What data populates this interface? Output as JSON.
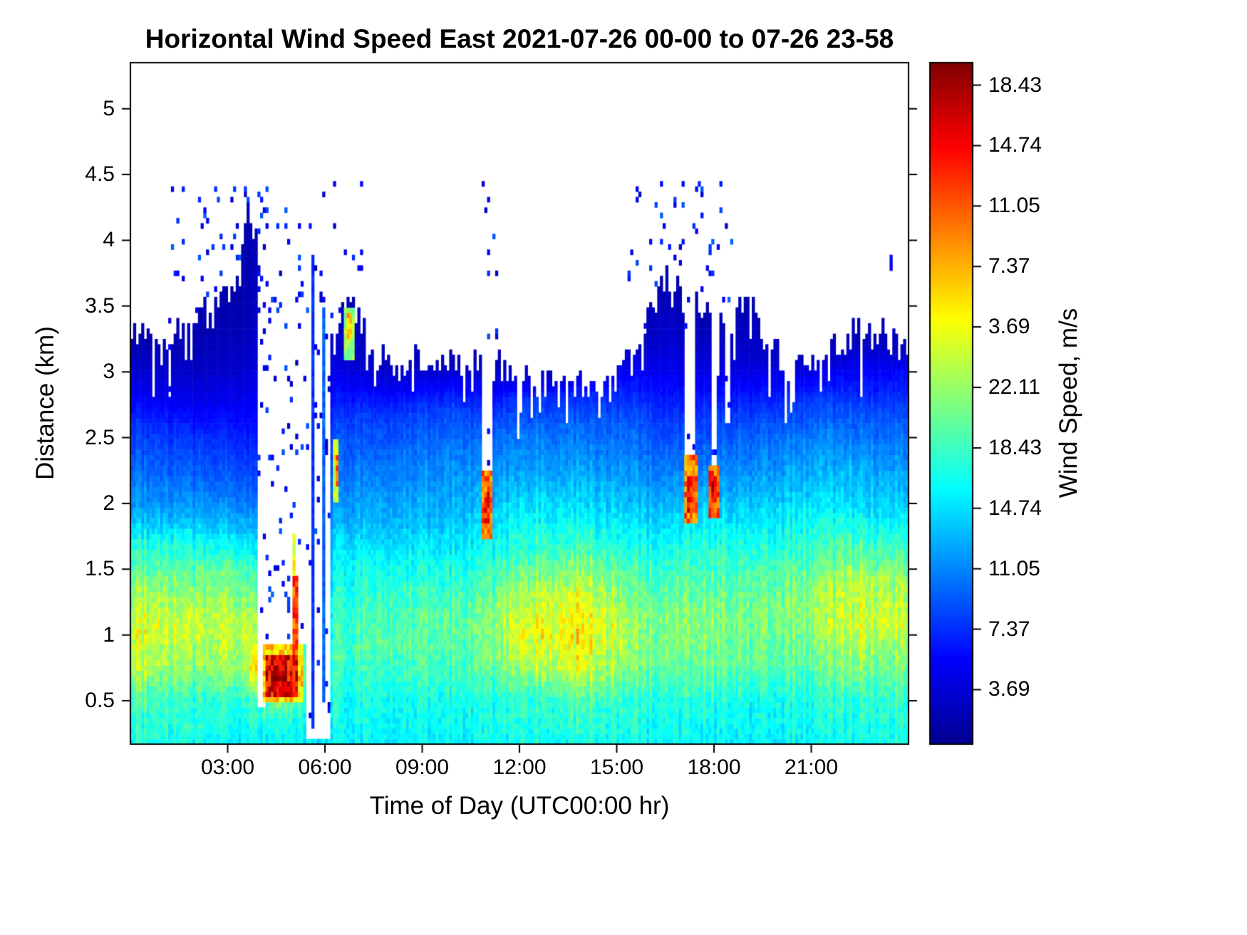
{
  "chart_data": {
    "type": "heatmap",
    "title": "Horizontal Wind Speed East 2021-07-26 00-00 to 07-26 23-58",
    "xlabel": "Time of Day (UTC00:00 hr)",
    "ylabel": "Distance (km)",
    "colorbar_label": "Wind Speed, m/s",
    "x_range": [
      0,
      24
    ],
    "y_range": [
      0.17,
      5.35
    ],
    "value_range": [
      0,
      40.54
    ],
    "grid_on": false,
    "x_ticks": [
      {
        "t": 3,
        "label": "03:00"
      },
      {
        "t": 6,
        "label": "06:00"
      },
      {
        "t": 9,
        "label": "09:00"
      },
      {
        "t": 12,
        "label": "12:00"
      },
      {
        "t": 15,
        "label": "15:00"
      },
      {
        "t": 18,
        "label": "18:00"
      },
      {
        "t": 21,
        "label": "21:00"
      }
    ],
    "y_ticks": [
      {
        "v": 0.5,
        "label": "0.5"
      },
      {
        "v": 1,
        "label": "1"
      },
      {
        "v": 1.5,
        "label": "1.5"
      },
      {
        "v": 2,
        "label": "2"
      },
      {
        "v": 2.5,
        "label": "2.5"
      },
      {
        "v": 3,
        "label": "3"
      },
      {
        "v": 3.5,
        "label": "3.5"
      },
      {
        "v": 4,
        "label": "4"
      },
      {
        "v": 4.5,
        "label": "4.5"
      },
      {
        "v": 5,
        "label": "5"
      }
    ],
    "colorbar_tick_labels_top_to_bottom": [
      "18.43",
      "14.74",
      "11.05",
      "7.37",
      "3.69",
      "22.11",
      "18.43",
      "14.74",
      "11.05",
      "7.37",
      "3.69"
    ],
    "colormap": "jet",
    "colormap_stops": [
      [
        0,
        0,
        0,
        143
      ],
      [
        0.125,
        0,
        0,
        255
      ],
      [
        0.375,
        0,
        255,
        255
      ],
      [
        0.625,
        255,
        255,
        0
      ],
      [
        0.875,
        255,
        0,
        0
      ],
      [
        1,
        128,
        0,
        0
      ]
    ],
    "grid": {
      "cols": 288,
      "dh": 0.04
    },
    "profiles": [
      {
        "t": 0,
        "levels": [
          [
            0.17,
            16
          ],
          [
            0.5,
            18
          ],
          [
            0.7,
            22
          ],
          [
            1.0,
            24
          ],
          [
            1.3,
            22
          ],
          [
            1.6,
            18
          ],
          [
            1.8,
            14
          ],
          [
            2.0,
            11
          ],
          [
            2.3,
            9
          ],
          [
            2.6,
            7
          ],
          [
            2.8,
            5
          ],
          [
            3.0,
            3
          ],
          [
            3.2,
            1.5
          ],
          [
            5.4,
            1.2
          ]
        ]
      },
      {
        "t": 2,
        "levels": [
          [
            0.17,
            16
          ],
          [
            0.5,
            17
          ],
          [
            0.8,
            21
          ],
          [
            1.1,
            23
          ],
          [
            1.4,
            20
          ],
          [
            1.7,
            16
          ],
          [
            1.9,
            12
          ],
          [
            2.2,
            9
          ],
          [
            2.5,
            7
          ],
          [
            2.8,
            4
          ],
          [
            3.0,
            2.5
          ],
          [
            3.3,
            1.5
          ],
          [
            5.4,
            1.2
          ]
        ]
      },
      {
        "t": 3.5,
        "levels": [
          [
            0.17,
            15
          ],
          [
            0.5,
            17
          ],
          [
            0.8,
            22
          ],
          [
            1.1,
            23
          ],
          [
            1.5,
            19
          ],
          [
            1.8,
            13
          ],
          [
            2.1,
            9
          ],
          [
            2.4,
            7
          ],
          [
            2.7,
            5
          ],
          [
            3.0,
            3
          ],
          [
            3.4,
            1.5
          ],
          [
            5.4,
            1.2
          ]
        ]
      },
      {
        "t": 4.6,
        "levels": [
          [
            0.17,
            15
          ],
          [
            0.35,
            16
          ],
          [
            0.5,
            20
          ],
          [
            0.65,
            30
          ],
          [
            0.75,
            34
          ],
          [
            0.9,
            26
          ],
          [
            1.1,
            20
          ],
          [
            1.6,
            10
          ],
          [
            2.5,
            5
          ],
          [
            5.4,
            1.2
          ]
        ]
      },
      {
        "t": 5.6,
        "levels": [
          [
            0.17,
            14
          ],
          [
            0.4,
            15
          ],
          [
            0.6,
            16
          ],
          [
            0.9,
            14
          ],
          [
            1.2,
            12
          ],
          [
            2.0,
            8
          ],
          [
            3.0,
            3
          ],
          [
            5.4,
            1.2
          ]
        ]
      },
      {
        "t": 6.5,
        "levels": [
          [
            0.17,
            15
          ],
          [
            0.5,
            16
          ],
          [
            0.9,
            18
          ],
          [
            1.3,
            17
          ],
          [
            1.6,
            15
          ],
          [
            1.9,
            12
          ],
          [
            2.2,
            10
          ],
          [
            2.6,
            8
          ],
          [
            2.9,
            5
          ],
          [
            3.1,
            3
          ],
          [
            3.5,
            1.5
          ],
          [
            5.4,
            1.2
          ]
        ]
      },
      {
        "t": 8,
        "levels": [
          [
            0.17,
            15
          ],
          [
            0.5,
            16
          ],
          [
            0.9,
            19
          ],
          [
            1.2,
            18
          ],
          [
            1.5,
            16
          ],
          [
            1.8,
            13
          ],
          [
            2.1,
            11
          ],
          [
            2.4,
            9
          ],
          [
            2.7,
            7
          ],
          [
            2.9,
            4
          ],
          [
            3.05,
            2
          ],
          [
            5.4,
            1.2
          ]
        ]
      },
      {
        "t": 10,
        "levels": [
          [
            0.17,
            15
          ],
          [
            0.5,
            16
          ],
          [
            0.8,
            18
          ],
          [
            1.1,
            19
          ],
          [
            1.4,
            17
          ],
          [
            1.7,
            14
          ],
          [
            2.0,
            12
          ],
          [
            2.4,
            10
          ],
          [
            2.7,
            8
          ],
          [
            2.9,
            5
          ],
          [
            3.05,
            2
          ],
          [
            5.4,
            1.2
          ]
        ]
      },
      {
        "t": 11,
        "levels": [
          [
            0.17,
            15
          ],
          [
            0.5,
            16
          ],
          [
            0.8,
            19
          ],
          [
            1.1,
            20
          ],
          [
            1.4,
            18
          ],
          [
            1.7,
            15
          ],
          [
            2.2,
            11
          ],
          [
            2.6,
            8
          ],
          [
            2.9,
            4
          ],
          [
            3.05,
            2
          ],
          [
            5.4,
            1.2
          ]
        ]
      },
      {
        "t": 12.5,
        "levels": [
          [
            0.17,
            16
          ],
          [
            0.5,
            17
          ],
          [
            0.7,
            21
          ],
          [
            1.0,
            25
          ],
          [
            1.3,
            23
          ],
          [
            1.6,
            18
          ],
          [
            1.9,
            15
          ],
          [
            2.2,
            12
          ],
          [
            2.5,
            10
          ],
          [
            2.8,
            7
          ],
          [
            2.95,
            3
          ],
          [
            3.1,
            1.5
          ],
          [
            5.4,
            1.2
          ]
        ]
      },
      {
        "t": 14,
        "levels": [
          [
            0.17,
            16
          ],
          [
            0.5,
            18
          ],
          [
            0.7,
            23
          ],
          [
            1.0,
            26
          ],
          [
            1.3,
            24
          ],
          [
            1.6,
            19
          ],
          [
            1.9,
            15
          ],
          [
            2.2,
            12
          ],
          [
            2.6,
            9
          ],
          [
            2.85,
            6
          ],
          [
            2.95,
            3
          ],
          [
            5.4,
            1.2
          ]
        ]
      },
      {
        "t": 15.5,
        "levels": [
          [
            0.17,
            16
          ],
          [
            0.5,
            17
          ],
          [
            0.8,
            21
          ],
          [
            1.1,
            22
          ],
          [
            1.4,
            19
          ],
          [
            1.7,
            16
          ],
          [
            2.0,
            13
          ],
          [
            2.4,
            10
          ],
          [
            2.7,
            8
          ],
          [
            3.0,
            5
          ],
          [
            3.2,
            2
          ],
          [
            5.4,
            1.2
          ]
        ]
      },
      {
        "t": 16.5,
        "levels": [
          [
            0.17,
            15
          ],
          [
            0.5,
            16
          ],
          [
            0.8,
            19
          ],
          [
            1.1,
            20
          ],
          [
            1.5,
            17
          ],
          [
            1.8,
            14
          ],
          [
            2.1,
            11
          ],
          [
            2.5,
            8
          ],
          [
            2.9,
            5
          ],
          [
            3.2,
            3
          ],
          [
            3.7,
            1.5
          ],
          [
            5.4,
            1.2
          ]
        ]
      },
      {
        "t": 17.6,
        "levels": [
          [
            0.17,
            15
          ],
          [
            0.5,
            17
          ],
          [
            0.8,
            20
          ],
          [
            1.1,
            21
          ],
          [
            1.4,
            19
          ],
          [
            1.7,
            17
          ],
          [
            2.0,
            13
          ],
          [
            2.3,
            10
          ],
          [
            2.7,
            7
          ],
          [
            3.0,
            4
          ],
          [
            3.4,
            1.5
          ],
          [
            5.4,
            1.2
          ]
        ]
      },
      {
        "t": 19,
        "levels": [
          [
            0.17,
            15
          ],
          [
            0.5,
            16
          ],
          [
            0.8,
            19
          ],
          [
            1.2,
            20
          ],
          [
            1.5,
            18
          ],
          [
            1.8,
            15
          ],
          [
            2.1,
            12
          ],
          [
            2.5,
            9
          ],
          [
            2.8,
            6
          ],
          [
            3.1,
            3
          ],
          [
            3.5,
            1.5
          ],
          [
            5.4,
            1.2
          ]
        ]
      },
      {
        "t": 21,
        "levels": [
          [
            0.17,
            15
          ],
          [
            0.5,
            16
          ],
          [
            0.8,
            19
          ],
          [
            1.2,
            21
          ],
          [
            1.5,
            19
          ],
          [
            1.8,
            16
          ],
          [
            2.1,
            13
          ],
          [
            2.5,
            10
          ],
          [
            2.8,
            7
          ],
          [
            3.0,
            4
          ],
          [
            3.1,
            2
          ],
          [
            5.4,
            1.2
          ]
        ]
      },
      {
        "t": 22.5,
        "levels": [
          [
            0.17,
            16
          ],
          [
            0.5,
            17
          ],
          [
            0.8,
            21
          ],
          [
            1.1,
            24
          ],
          [
            1.4,
            23
          ],
          [
            1.7,
            18
          ],
          [
            2.0,
            14
          ],
          [
            2.4,
            11
          ],
          [
            2.7,
            8
          ],
          [
            3.0,
            5
          ],
          [
            3.25,
            2
          ],
          [
            5.4,
            1.2
          ]
        ]
      },
      {
        "t": 24,
        "levels": [
          [
            0.17,
            16
          ],
          [
            0.5,
            17
          ],
          [
            0.8,
            20
          ],
          [
            1.1,
            23
          ],
          [
            1.4,
            21
          ],
          [
            1.7,
            17
          ],
          [
            2.0,
            13
          ],
          [
            2.4,
            10
          ],
          [
            2.7,
            8
          ],
          [
            3.0,
            5
          ],
          [
            3.2,
            2
          ],
          [
            5.4,
            1.2
          ]
        ]
      }
    ],
    "tops": [
      [
        0,
        3.35
      ],
      [
        0.5,
        3.25
      ],
      [
        1,
        3.2
      ],
      [
        1.5,
        3.3
      ],
      [
        2,
        3.4
      ],
      [
        2.5,
        3.5
      ],
      [
        3,
        3.6
      ],
      [
        3.4,
        3.8
      ],
      [
        3.7,
        4.4
      ],
      [
        3.9,
        4.0
      ],
      [
        4.5,
        3.9
      ],
      [
        5.5,
        3.9
      ],
      [
        6.2,
        3.3
      ],
      [
        6.6,
        3.55
      ],
      [
        7.0,
        3.45
      ],
      [
        7.5,
        3.15
      ],
      [
        8,
        3.05
      ],
      [
        9,
        3.1
      ],
      [
        10,
        3.05
      ],
      [
        10.8,
        3.05
      ],
      [
        11.3,
        3.05
      ],
      [
        12,
        2.95
      ],
      [
        13,
        2.9
      ],
      [
        14,
        2.9
      ],
      [
        15,
        2.95
      ],
      [
        15.5,
        3.1
      ],
      [
        16,
        3.45
      ],
      [
        16.5,
        3.7
      ],
      [
        17,
        3.65
      ],
      [
        17.5,
        3.5
      ],
      [
        18,
        3.45
      ],
      [
        18.5,
        3.4
      ],
      [
        18.9,
        3.55
      ],
      [
        19.3,
        3.45
      ],
      [
        19.7,
        3.15
      ],
      [
        20.5,
        3.05
      ],
      [
        21.3,
        3.1
      ],
      [
        21.8,
        3.2
      ],
      [
        22.3,
        3.3
      ],
      [
        23,
        3.3
      ],
      [
        23.5,
        3.25
      ],
      [
        24,
        3.15
      ]
    ],
    "gaps": [
      [
        3.92,
        4.15,
        0.45,
        5.4
      ],
      [
        3.95,
        5.5,
        0.95,
        5.4
      ],
      [
        5.45,
        6.15,
        0.22,
        5.4
      ],
      [
        10.85,
        11.18,
        2.25,
        5.4
      ],
      [
        17.12,
        17.42,
        2.35,
        5.4
      ],
      [
        17.88,
        18.12,
        2.05,
        5.4
      ],
      [
        18.3,
        18.48,
        2.6,
        5.4
      ]
    ],
    "anomalies": [
      [
        4.12,
        5.3,
        0.48,
        0.95,
        27
      ],
      [
        4.2,
        5.15,
        0.55,
        0.85,
        36
      ],
      [
        4.35,
        4.85,
        0.6,
        0.78,
        39
      ],
      [
        4.98,
        5.14,
        0.85,
        1.45,
        33
      ],
      [
        5.0,
        5.12,
        1.45,
        1.75,
        25
      ],
      [
        5.58,
        5.7,
        0.3,
        3.9,
        7
      ],
      [
        5.95,
        6.02,
        0.5,
        3.5,
        9
      ],
      [
        6.28,
        6.45,
        2.0,
        2.5,
        24
      ],
      [
        6.33,
        6.42,
        2.15,
        2.35,
        32
      ],
      [
        6.6,
        6.95,
        3.1,
        3.5,
        21
      ],
      [
        6.7,
        6.85,
        3.25,
        3.45,
        27
      ],
      [
        10.8,
        11.18,
        1.75,
        2.25,
        31
      ],
      [
        10.9,
        11.08,
        1.85,
        2.1,
        35
      ],
      [
        17.08,
        17.46,
        1.85,
        2.35,
        31
      ],
      [
        17.18,
        17.34,
        1.95,
        2.2,
        35
      ],
      [
        17.84,
        18.16,
        1.9,
        2.3,
        32
      ],
      [
        17.95,
        18.08,
        2.0,
        2.2,
        36
      ],
      [
        23.42,
        23.52,
        3.78,
        3.9,
        5
      ]
    ],
    "speckle_zones": [
      [
        1.2,
        3.95
      ],
      [
        3.95,
        6.15
      ],
      [
        6.2,
        7.2
      ],
      [
        10.8,
        11.3
      ],
      [
        15.3,
        17.2
      ],
      [
        17.0,
        18.6
      ]
    ]
  }
}
